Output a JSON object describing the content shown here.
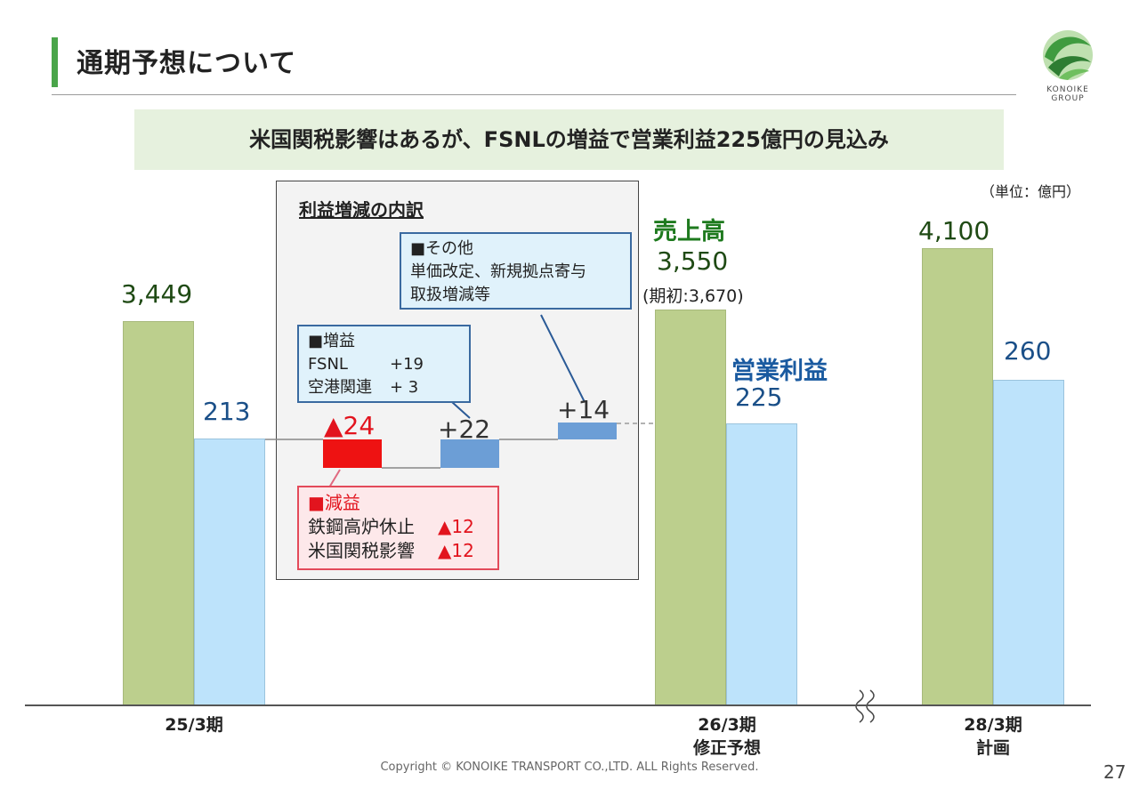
{
  "page": {
    "title": "通期予想について",
    "headline": "米国関税影響はあるが、FSNLの増益で営業利益225億円の見込み",
    "unit": "（単位：億円）",
    "copyright": "Copyright © KONOIKE TRANSPORT CO.,LTD.  ALL Rights Reserved.",
    "page_number": "27",
    "logo_text_1": "KONOIKE",
    "logo_text_2": "GROUP",
    "colors": {
      "sales": "#bccf8d",
      "operating_profit": "#bde3fb",
      "decrease": "#ee1212",
      "increase": "#6c9ed6",
      "accent": "#4aa54a"
    }
  },
  "chart_data": {
    "type": "bar",
    "title": "通期予想について",
    "categories": [
      "25/3期",
      "26/3期 修正予想",
      "28/3期 計画"
    ],
    "category_lines": [
      [
        "25/3期"
      ],
      [
        "26/3期",
        "修正予想"
      ],
      [
        "28/3期",
        "計画"
      ]
    ],
    "series": [
      {
        "name": "売上高",
        "values": [
          3449,
          3550,
          4100
        ],
        "labels": [
          "3,449",
          "3,550",
          "4,100"
        ]
      },
      {
        "name": "営業利益",
        "values": [
          213,
          225,
          260
        ],
        "labels": [
          "213",
          "225",
          "260"
        ]
      }
    ],
    "sales_label": "売上高",
    "op_label": "営業利益",
    "sales_initial_note": "(期初:3,670)",
    "waterfall": {
      "title": "利益増減の内訳",
      "start": 213,
      "steps": [
        {
          "name": "減益",
          "delta": -24,
          "label": "▲24"
        },
        {
          "name": "増益",
          "delta": 22,
          "label": "+22"
        },
        {
          "name": "その他",
          "delta": 14,
          "label": "+14"
        }
      ],
      "end": 225
    },
    "notes": {
      "decrease": {
        "header": "■減益",
        "items": [
          {
            "name": "鉄鋼高炉休止",
            "value": "▲12"
          },
          {
            "name": "米国関税影響",
            "value": "▲12"
          }
        ]
      },
      "increase": {
        "header": "■増益",
        "items": [
          {
            "name": "FSNL",
            "value": "+19"
          },
          {
            "name": "空港関連",
            "value": "+ 3"
          }
        ]
      },
      "other": {
        "header": "■その他",
        "lines": [
          "単価改定、新規拠点寄与",
          "取扱増減等"
        ]
      }
    }
  }
}
